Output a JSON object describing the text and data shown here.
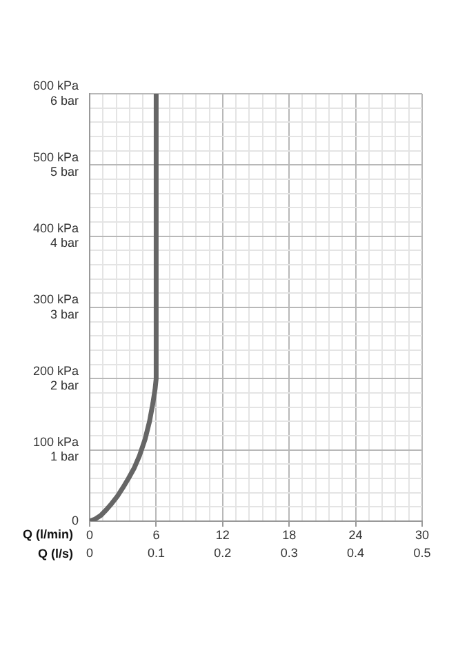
{
  "chart_data": {
    "type": "line",
    "xlabel": "Q (l/min)",
    "x2label": "Q (l/s)",
    "x": [
      0,
      0.5,
      1,
      1.5,
      2,
      2.5,
      3,
      3.5,
      4,
      4.5,
      5,
      5.4,
      5.7,
      5.9,
      6,
      6
    ],
    "series": [
      {
        "color": "#666666",
        "values": [
          0,
          3,
          8,
          16,
          25,
          35,
          47,
          60,
          74,
          92,
          115,
          140,
          165,
          185,
          200,
          600
        ]
      }
    ],
    "xlim": [
      0,
      30
    ],
    "xticks": [
      0,
      {
        "value": 1.2,
        "label": null
      },
      {
        "value": 2.4,
        "label": null
      },
      {
        "value": 3.6,
        "label": null
      },
      {
        "value": 4.8,
        "label": null
      },
      6,
      {
        "value": 7.2,
        "label": null
      },
      {
        "value": 8.4,
        "label": null
      },
      {
        "value": 9.6,
        "label": null
      },
      {
        "value": 10.8,
        "label": null
      },
      12,
      {
        "value": 13.2,
        "label": null
      },
      {
        "value": 14.4,
        "label": null
      },
      {
        "value": 15.6,
        "label": null
      },
      {
        "value": 16.8,
        "label": null
      },
      18,
      {
        "value": 19.2,
        "label": null
      },
      {
        "value": 20.4,
        "label": null
      },
      {
        "value": 21.6,
        "label": null
      },
      {
        "value": 22.8,
        "label": null
      },
      24,
      {
        "value": 25.2,
        "label": null
      },
      {
        "value": 26.4,
        "label": null
      },
      {
        "value": 27.6,
        "label": null
      },
      {
        "value": 28.8,
        "label": null
      },
      30
    ],
    "x2lim": [
      0,
      0.5
    ],
    "x2ticks": [
      0,
      0.1,
      0.2,
      0.3,
      0.4,
      0.5
    ],
    "ylim": [
      0,
      600
    ],
    "yticks": [
      0,
      {
        "value": 20,
        "label": null
      },
      {
        "value": 40,
        "label": null
      },
      {
        "value": 60,
        "label": null
      },
      {
        "value": 80,
        "label": null
      },
      {
        "value": 100,
        "label": "100 kPa"
      },
      {
        "value": 120,
        "label": null
      },
      {
        "value": 140,
        "label": null
      },
      {
        "value": 160,
        "label": null
      },
      {
        "value": 180,
        "label": null
      },
      {
        "value": 200,
        "label": "200 kPa"
      },
      {
        "value": 220,
        "label": null
      },
      {
        "value": 240,
        "label": null
      },
      {
        "value": 260,
        "label": null
      },
      {
        "value": 280,
        "label": null
      },
      {
        "value": 300,
        "label": "300 kPa"
      },
      {
        "value": 320,
        "label": null
      },
      {
        "value": 340,
        "label": null
      },
      {
        "value": 360,
        "label": null
      },
      {
        "value": 380,
        "label": null
      },
      {
        "value": 400,
        "label": "400 kPa"
      },
      {
        "value": 420,
        "label": null
      },
      {
        "value": 440,
        "label": null
      },
      {
        "value": 460,
        "label": null
      },
      {
        "value": 480,
        "label": null
      },
      {
        "value": 500,
        "label": "500 kPa"
      },
      {
        "value": 520,
        "label": null
      },
      {
        "value": 540,
        "label": null
      },
      {
        "value": 560,
        "label": null
      },
      {
        "value": 580,
        "label": null
      },
      {
        "value": 600,
        "label": "600 kPa"
      }
    ],
    "y2lim": [
      0,
      6
    ],
    "y2ticks": [
      {
        "value": 1,
        "label": "1 bar"
      },
      {
        "value": 2,
        "label": "2 bar"
      },
      {
        "value": 3,
        "label": "3 bar"
      },
      {
        "value": 4,
        "label": "4 bar"
      },
      {
        "value": 5,
        "label": "5 bar"
      },
      {
        "value": 6,
        "label": "6 bar"
      }
    ],
    "grid": true,
    "legend": false,
    "marker": "none",
    "line_style": "solid"
  }
}
